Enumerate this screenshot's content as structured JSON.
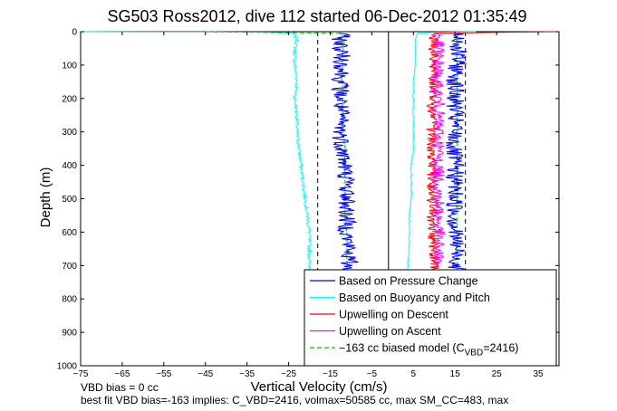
{
  "title": "SG503 Ross2012, dive 112 started 06-Dec-2012 01:35:49",
  "notes": {
    "line1": "VBD bias = 0 cc",
    "line2": "best fit VBD bias=-163 implies: C_VBD=2416, volmax=50585 cc, max SM_CC=483, max"
  },
  "chart_data": {
    "type": "line",
    "title": "SG503 Ross2012, dive 112 started 06-Dec-2012 01:35:49",
    "xlabel": "Vertical Velocity (cm/s)",
    "ylabel": "Depth (m)",
    "xlim": [
      -75,
      40
    ],
    "ylim": [
      1000,
      0
    ],
    "y_reversed": true,
    "xticks": [
      -75,
      -65,
      -55,
      -45,
      -35,
      -25,
      -15,
      -5,
      5,
      15,
      25,
      35
    ],
    "yticks": [
      0,
      100,
      200,
      300,
      400,
      500,
      600,
      700,
      800,
      900,
      1000
    ],
    "grid": false,
    "legend_position": "bottom-right",
    "legend": [
      {
        "label": "Based on Pressure Change",
        "color": "#0000ff",
        "style": "solid"
      },
      {
        "label": "Based on Buoyancy and Pitch",
        "color": "#00ffff",
        "style": "solid"
      },
      {
        "label": "Upwelling on Descent",
        "color": "#ff0000",
        "style": "solid"
      },
      {
        "label": "Upwelling on Ascent",
        "color": "#ff00ff",
        "style": "solid"
      },
      {
        "label": "−163 cc biased model (C",
        "sub": "VBD",
        "tail": "=2416)",
        "color": "#00cc00",
        "style": "dashed"
      }
    ],
    "series": [
      {
        "key": "pressure_descent",
        "color": "#0000ff",
        "x": [
          -12.5,
          -12.5,
          -12,
          -12.5,
          -12.5,
          -12.5,
          -12.5,
          -12,
          -11.5,
          -11,
          -11,
          -11,
          -11,
          -10.5,
          -10.5,
          -10.5,
          -10.5,
          -10.5
        ],
        "y": [
          5,
          50,
          100,
          150,
          200,
          250,
          300,
          350,
          400,
          450,
          500,
          550,
          600,
          650,
          700,
          750,
          800,
          850
        ]
      },
      {
        "key": "pressure_ascent",
        "color": "#0000ff",
        "x": [
          16,
          15.5,
          15,
          15,
          15,
          15,
          14.5,
          15,
          15,
          15,
          15,
          15,
          15.5,
          15.5,
          15.5,
          15.5
        ],
        "y": [
          5,
          100,
          150,
          200,
          250,
          300,
          350,
          400,
          450,
          500,
          550,
          600,
          650,
          700,
          750,
          800
        ]
      },
      {
        "key": "buoyancy_descent",
        "color": "#00ffff",
        "x": [
          -75,
          -60,
          -45,
          -30,
          -24,
          -23,
          -23.5,
          -23.5,
          -23,
          -23.5,
          -23,
          -23,
          -22.5,
          -22,
          -21.5,
          -21,
          -20.5,
          -20,
          -20,
          -20,
          -19.5
        ],
        "y": [
          0,
          1,
          1,
          2,
          5,
          20,
          60,
          100,
          150,
          200,
          250,
          300,
          350,
          400,
          450,
          500,
          550,
          600,
          650,
          700,
          720
        ]
      },
      {
        "key": "buoyancy_ascent",
        "color": "#00ffff",
        "x": [
          3.5,
          4,
          4,
          4,
          4.5,
          4.5,
          4.5,
          5,
          5,
          5,
          5,
          5,
          5.5,
          5.5,
          5.5,
          6,
          10,
          20
        ],
        "y": [
          720,
          650,
          600,
          550,
          500,
          450,
          400,
          350,
          300,
          250,
          200,
          150,
          100,
          60,
          20,
          5,
          2,
          0
        ]
      },
      {
        "key": "upwelling_descent",
        "color": "#ff0000",
        "x": [
          10,
          10,
          9.5,
          9.5,
          9.5,
          9.5,
          9.5,
          9.5,
          9.5,
          9.5,
          9.5,
          10,
          10,
          10,
          10,
          25,
          40
        ],
        "y": [
          720,
          650,
          600,
          550,
          500,
          450,
          400,
          350,
          300,
          250,
          200,
          150,
          100,
          50,
          5,
          2,
          0
        ]
      },
      {
        "key": "upwelling_ascent",
        "color": "#ff00ff",
        "x": [
          11,
          11,
          11,
          10.5,
          11,
          11,
          11,
          11,
          11,
          11,
          11,
          11,
          11,
          11,
          11
        ],
        "y": [
          5,
          50,
          100,
          150,
          200,
          250,
          300,
          350,
          400,
          450,
          500,
          550,
          600,
          650,
          700
        ]
      },
      {
        "key": "model_biased_descent",
        "color": "#00cc00",
        "x": [
          -45,
          -12.5,
          -12,
          -12,
          -12,
          -12,
          -12,
          -12,
          -11.5,
          -11.5,
          -11.5,
          -11.5,
          -11.5,
          -11,
          -11,
          -11
        ],
        "y": [
          0,
          5,
          50,
          100,
          150,
          200,
          250,
          300,
          350,
          400,
          450,
          500,
          550,
          600,
          650,
          720
        ]
      },
      {
        "key": "model_biased_ascent",
        "color": "#00cc00",
        "x": [
          15.5,
          15.5,
          15.5,
          15.5,
          15.5,
          15.5,
          15.5,
          15.5,
          15.5,
          15.5,
          15.5,
          15.5,
          15.5,
          15.5
        ],
        "y": [
          720,
          650,
          600,
          550,
          500,
          450,
          400,
          350,
          300,
          250,
          200,
          150,
          100,
          5
        ]
      }
    ],
    "reference_lines": [
      {
        "x": -18,
        "style": "dashed",
        "color": "#000000"
      },
      {
        "x": -1,
        "style": "solid",
        "color": "#000000"
      },
      {
        "x": 17.5,
        "style": "dashed",
        "color": "#000000"
      }
    ]
  }
}
